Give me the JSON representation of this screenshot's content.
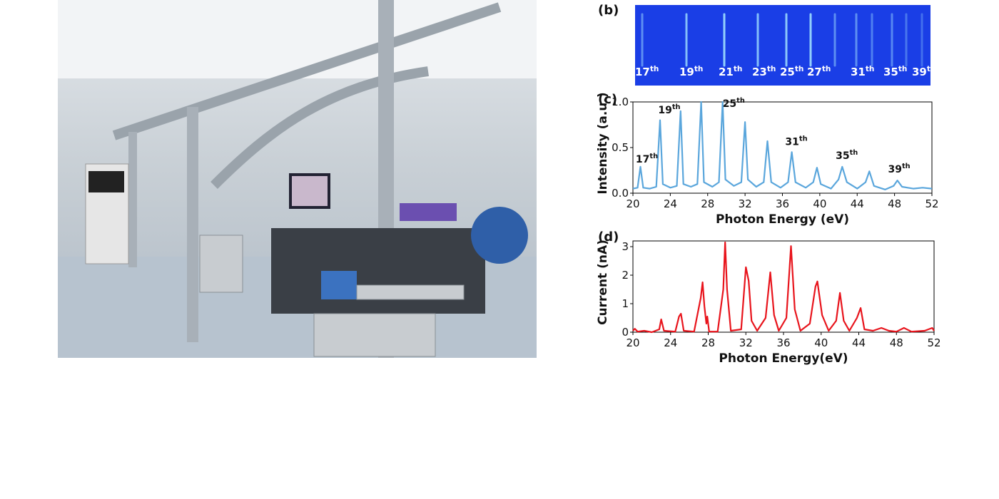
{
  "panel_b": {
    "label": "(b)",
    "harmonics": [
      {
        "n": "17",
        "sup": "th"
      },
      {
        "n": "19",
        "sup": "th"
      },
      {
        "n": "21",
        "sup": "th"
      },
      {
        "n": "23",
        "sup": "th"
      },
      {
        "n": "25",
        "sup": "th"
      },
      {
        "n": "27",
        "sup": "th"
      },
      {
        "n": "31",
        "sup": "th"
      },
      {
        "n": "35",
        "sup": "th"
      },
      {
        "n": "39",
        "sup": "th"
      }
    ]
  },
  "chart_data": [
    {
      "type": "line",
      "panel_label": "(c)",
      "x_label": "Photon Energy (eV)",
      "y_label": "Intensity (a.u.)",
      "color": "#5aa6dc",
      "xlim": [
        20,
        52
      ],
      "xticks": [
        20,
        24,
        28,
        32,
        36,
        40,
        44,
        48,
        52
      ],
      "ylim": [
        0,
        1.0
      ],
      "yticks": [
        {
          "value": 0,
          "label": "0.0"
        },
        {
          "value": 0.5,
          "label": "0.5"
        },
        {
          "value": 1.0,
          "label": "1.0"
        }
      ],
      "annotations": [
        {
          "n": "17",
          "sup": "th"
        },
        {
          "n": "19",
          "sup": "th"
        },
        {
          "n": "25",
          "sup": "th"
        },
        {
          "n": "31",
          "sup": "th"
        },
        {
          "n": "35",
          "sup": "th"
        },
        {
          "n": "39",
          "sup": "th"
        }
      ],
      "x": [
        20.0,
        20.5,
        20.8,
        21.1,
        21.8,
        22.5,
        22.9,
        23.2,
        24.0,
        24.7,
        25.1,
        25.4,
        26.2,
        26.9,
        27.3,
        27.6,
        28.5,
        29.2,
        29.6,
        29.9,
        30.8,
        31.6,
        32.0,
        32.3,
        33.2,
        34.0,
        34.4,
        34.8,
        35.8,
        36.6,
        37.0,
        37.4,
        38.5,
        39.3,
        39.7,
        40.1,
        41.2,
        42.0,
        42.4,
        42.9,
        44.0,
        44.9,
        45.3,
        45.8,
        47.0,
        47.9,
        48.3,
        48.8,
        50.0,
        51.0,
        52.0
      ],
      "values": [
        0.05,
        0.06,
        0.29,
        0.06,
        0.05,
        0.07,
        0.8,
        0.1,
        0.06,
        0.08,
        0.9,
        0.1,
        0.07,
        0.1,
        1.0,
        0.12,
        0.07,
        0.12,
        1.0,
        0.15,
        0.08,
        0.12,
        0.78,
        0.15,
        0.07,
        0.12,
        0.57,
        0.12,
        0.06,
        0.12,
        0.45,
        0.12,
        0.06,
        0.12,
        0.28,
        0.1,
        0.05,
        0.15,
        0.29,
        0.12,
        0.05,
        0.12,
        0.24,
        0.08,
        0.04,
        0.08,
        0.14,
        0.07,
        0.05,
        0.06,
        0.05
      ]
    },
    {
      "type": "line",
      "panel_label": "(d)",
      "x_label": "Photon Energy(eV)",
      "y_label": "Current (nA)",
      "color": "#e8141c",
      "xlim": [
        20,
        52
      ],
      "xticks": [
        20,
        24,
        28,
        32,
        36,
        40,
        44,
        48,
        52
      ],
      "ylim": [
        0,
        3.2
      ],
      "yticks": [
        0,
        1,
        2,
        3
      ],
      "x": [
        20.0,
        20.2,
        20.5,
        21.2,
        22.0,
        22.8,
        23.0,
        23.3,
        24.5,
        24.9,
        25.1,
        25.4,
        26.5,
        27.2,
        27.4,
        27.6,
        27.8,
        27.9,
        28.1,
        29.0,
        29.6,
        29.8,
        30.0,
        30.4,
        31.5,
        32.0,
        32.3,
        32.6,
        33.2,
        34.1,
        34.6,
        35.0,
        35.5,
        36.3,
        36.8,
        37.2,
        37.8,
        38.8,
        39.4,
        39.6,
        40.1,
        40.8,
        41.6,
        42.0,
        42.4,
        43.0,
        43.8,
        44.2,
        44.6,
        45.5,
        46.4,
        47.2,
        48.0,
        48.8,
        49.6,
        51.0,
        51.8,
        52.0
      ],
      "values": [
        0.05,
        0.12,
        0.02,
        0.05,
        0.0,
        0.1,
        0.45,
        0.05,
        0.02,
        0.55,
        0.65,
        0.05,
        0.02,
        1.2,
        1.75,
        0.9,
        0.3,
        0.55,
        0.02,
        0.02,
        1.5,
        3.15,
        1.5,
        0.05,
        0.1,
        2.28,
        1.8,
        0.4,
        0.05,
        0.5,
        2.1,
        0.6,
        0.05,
        0.5,
        3.02,
        0.8,
        0.05,
        0.3,
        1.6,
        1.78,
        0.6,
        0.05,
        0.4,
        1.38,
        0.4,
        0.05,
        0.5,
        0.85,
        0.1,
        0.05,
        0.15,
        0.05,
        0.02,
        0.15,
        0.02,
        0.05,
        0.15,
        0.05
      ]
    }
  ]
}
